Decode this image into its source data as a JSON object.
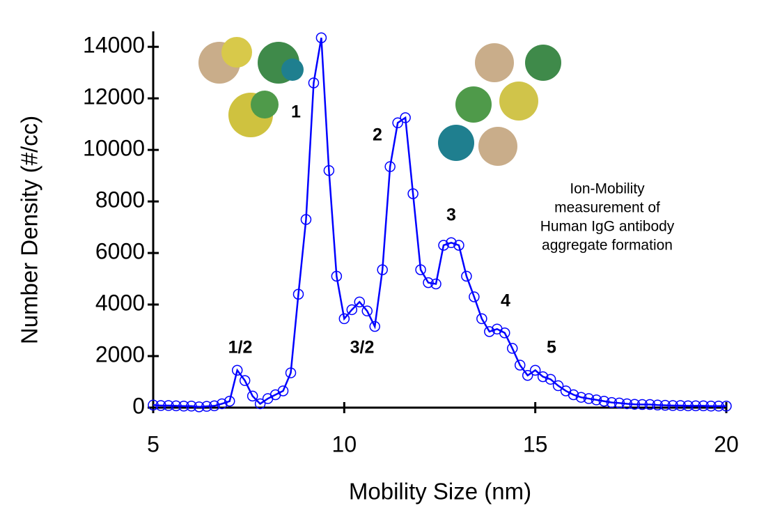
{
  "chart_data": {
    "type": "line",
    "x_label": "Mobility Size (nm)",
    "y_label": "Number Density (#/cc)",
    "x": [
      5.0,
      5.2,
      5.4,
      5.6,
      5.8,
      6.0,
      6.2,
      6.4,
      6.6,
      6.8,
      7.0,
      7.2,
      7.4,
      7.6,
      7.8,
      8.0,
      8.2,
      8.4,
      8.6,
      8.8,
      9.0,
      9.2,
      9.4,
      9.6,
      9.8,
      10.0,
      10.2,
      10.4,
      10.6,
      10.8,
      11.0,
      11.2,
      11.4,
      11.6,
      11.8,
      12.0,
      12.2,
      12.4,
      12.6,
      12.8,
      13.0,
      13.2,
      13.4,
      13.6,
      13.8,
      14.0,
      14.2,
      14.4,
      14.6,
      14.8,
      15.0,
      15.2,
      15.4,
      15.6,
      15.8,
      16.0,
      16.2,
      16.4,
      16.6,
      16.8,
      17.0,
      17.2,
      17.4,
      17.6,
      17.8,
      18.0,
      18.2,
      18.4,
      18.6,
      18.8,
      19.0,
      19.2,
      19.4,
      19.6,
      19.8,
      20.0
    ],
    "series": [
      {
        "color": "#0000ff",
        "values": [
          100,
          80,
          80,
          70,
          60,
          60,
          30,
          50,
          70,
          150,
          250,
          1450,
          1050,
          450,
          150,
          350,
          500,
          650,
          1350,
          4400,
          7300,
          12600,
          14350,
          9200,
          5100,
          3450,
          3800,
          4100,
          3750,
          3150,
          5350,
          9350,
          11050,
          11250,
          8300,
          5350,
          4850,
          4800,
          6300,
          6400,
          6300,
          5100,
          4300,
          3450,
          2950,
          3050,
          2900,
          2300,
          1650,
          1250,
          1450,
          1200,
          1100,
          850,
          650,
          500,
          400,
          350,
          300,
          250,
          200,
          180,
          150,
          130,
          120,
          120,
          100,
          90,
          80,
          80,
          70,
          70,
          70,
          60,
          60,
          60
        ]
      }
    ],
    "xlim": [
      5,
      20
    ],
    "xticks": [
      5,
      10,
      15,
      20
    ],
    "ylim": [
      0,
      14600
    ],
    "yticks": [
      0,
      2000,
      4000,
      6000,
      8000,
      10000,
      12000,
      14000
    ],
    "annotations": [
      "1/2",
      "1",
      "3/2",
      "2",
      "3",
      "4",
      "5"
    ],
    "note": [
      "Ion-Mobility",
      "measurement of",
      "Human IgG antibody",
      "aggregate formation"
    ]
  }
}
